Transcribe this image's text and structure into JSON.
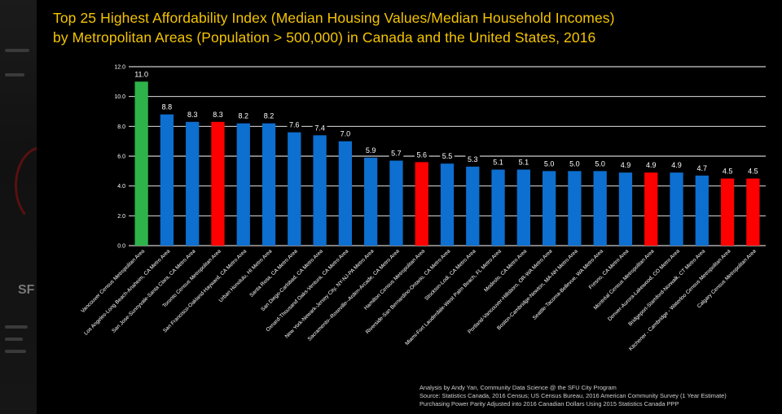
{
  "title": {
    "line1": "Top 25 Highest Affordability Index (Median Housing Values/Median Household Incomes)",
    "line2": "by Metropolitan Areas (Population > 500,000) in Canada and the United States, 2016"
  },
  "source": {
    "line1": "Analysis by Andy Yan, Community Data Science @ the SFU City Program",
    "line2": "Source: Statistics Canada, 2016 Census; US Census Bureau, 2016 American Community Survey (1 Year Estimate)",
    "line3": "Purchasing Power Parity Adjusted into 2016 Canadian Dollars Using 2015 Statistics Canada PPP"
  },
  "background_page": {
    "label": "SF"
  },
  "colors": {
    "title": "#f4c400",
    "canada_top": "#2db34a",
    "canada": "#ff0000",
    "united_states": "#0d6fcf",
    "grid": "#ffffff",
    "text": "#ffffff"
  },
  "chart_data": {
    "type": "bar",
    "categories": [
      "Vancouver Census Metropolitan Area",
      "Los Angeles-Long Beach-Anaheim, CA Metro Area",
      "San Jose-Sunnyvale-Santa Clara, CA Metro Area",
      "Toronto Census Metropolitan Area",
      "San Francisco-Oakland-Hayward, CA Metro Area",
      "Urban Honolulu, HI Metro Area",
      "Santa Rosa, CA Metro Area",
      "San Diego-Carlsbad, CA Metro Area",
      "Oxnard-Thousand Oaks-Ventura, CA Metro Area",
      "New York-Newark-Jersey City, NY-NJ-PA Metro Area",
      "Sacramento--Roseville--Arden-Arcade, CA Metro Area",
      "Hamilton Census Metropolitan Area",
      "Riverside-San Bernardino-Ontario, CA Metro Area",
      "Stockton-Lodi, CA Metro Area",
      "Miami-Fort Lauderdale-West Palm Beach, FL Metro Area",
      "Modesto, CA Metro Area",
      "Portland-Vancouver-Hillsboro, OR-WA Metro Area",
      "Boston-Cambridge-Newton, MA-NH Metro Area",
      "Seattle-Tacoma-Bellevue, WA Metro Area",
      "Fresno, CA Metro Area",
      "Montréal Census Metropolitan Area",
      "Denver-Aurora-Lakewood, CO Metro Area",
      "Bridgeport-Stamford-Norwalk, CT Metro Area",
      "Kitchener - Cambridge - Waterloo Census Metropolitan Area",
      "Calgary Census Metropolitan Area"
    ],
    "values": [
      11.0,
      8.8,
      8.3,
      8.3,
      8.2,
      8.2,
      7.6,
      7.4,
      7.0,
      5.9,
      5.7,
      5.6,
      5.5,
      5.3,
      5.1,
      5.1,
      5.0,
      5.0,
      5.0,
      4.9,
      4.9,
      4.9,
      4.7,
      4.5,
      4.5
    ],
    "value_labels": [
      "11.0",
      "8.8",
      "8.3",
      "8.3",
      "8.2",
      "8.2",
      "7.6",
      "7.4",
      "7.0",
      "5.9",
      "5.7",
      "5.6",
      "5.5",
      "5.3",
      "5.1",
      "5.1",
      "5.0",
      "5.0",
      "5.0",
      "4.9",
      "4.9",
      "4.9",
      "4.7",
      "4.5",
      "4.5"
    ],
    "bar_colors": [
      "#2db34a",
      "#0d6fcf",
      "#0d6fcf",
      "#ff0000",
      "#0d6fcf",
      "#0d6fcf",
      "#0d6fcf",
      "#0d6fcf",
      "#0d6fcf",
      "#0d6fcf",
      "#0d6fcf",
      "#ff0000",
      "#0d6fcf",
      "#0d6fcf",
      "#0d6fcf",
      "#0d6fcf",
      "#0d6fcf",
      "#0d6fcf",
      "#0d6fcf",
      "#0d6fcf",
      "#ff0000",
      "#0d6fcf",
      "#0d6fcf",
      "#ff0000",
      "#ff0000"
    ],
    "yticks": [
      "0.0",
      "2.0",
      "4.0",
      "6.0",
      "8.0",
      "10.0",
      "12.0"
    ],
    "ylim": [
      0,
      12
    ],
    "grid": true,
    "legend": false,
    "title": "Top 25 Highest Affordability Index (Median Housing Values/Median Household Incomes) by Metropolitan Areas (Population > 500,000) in Canada and the United States, 2016",
    "xlabel": "",
    "ylabel": ""
  }
}
